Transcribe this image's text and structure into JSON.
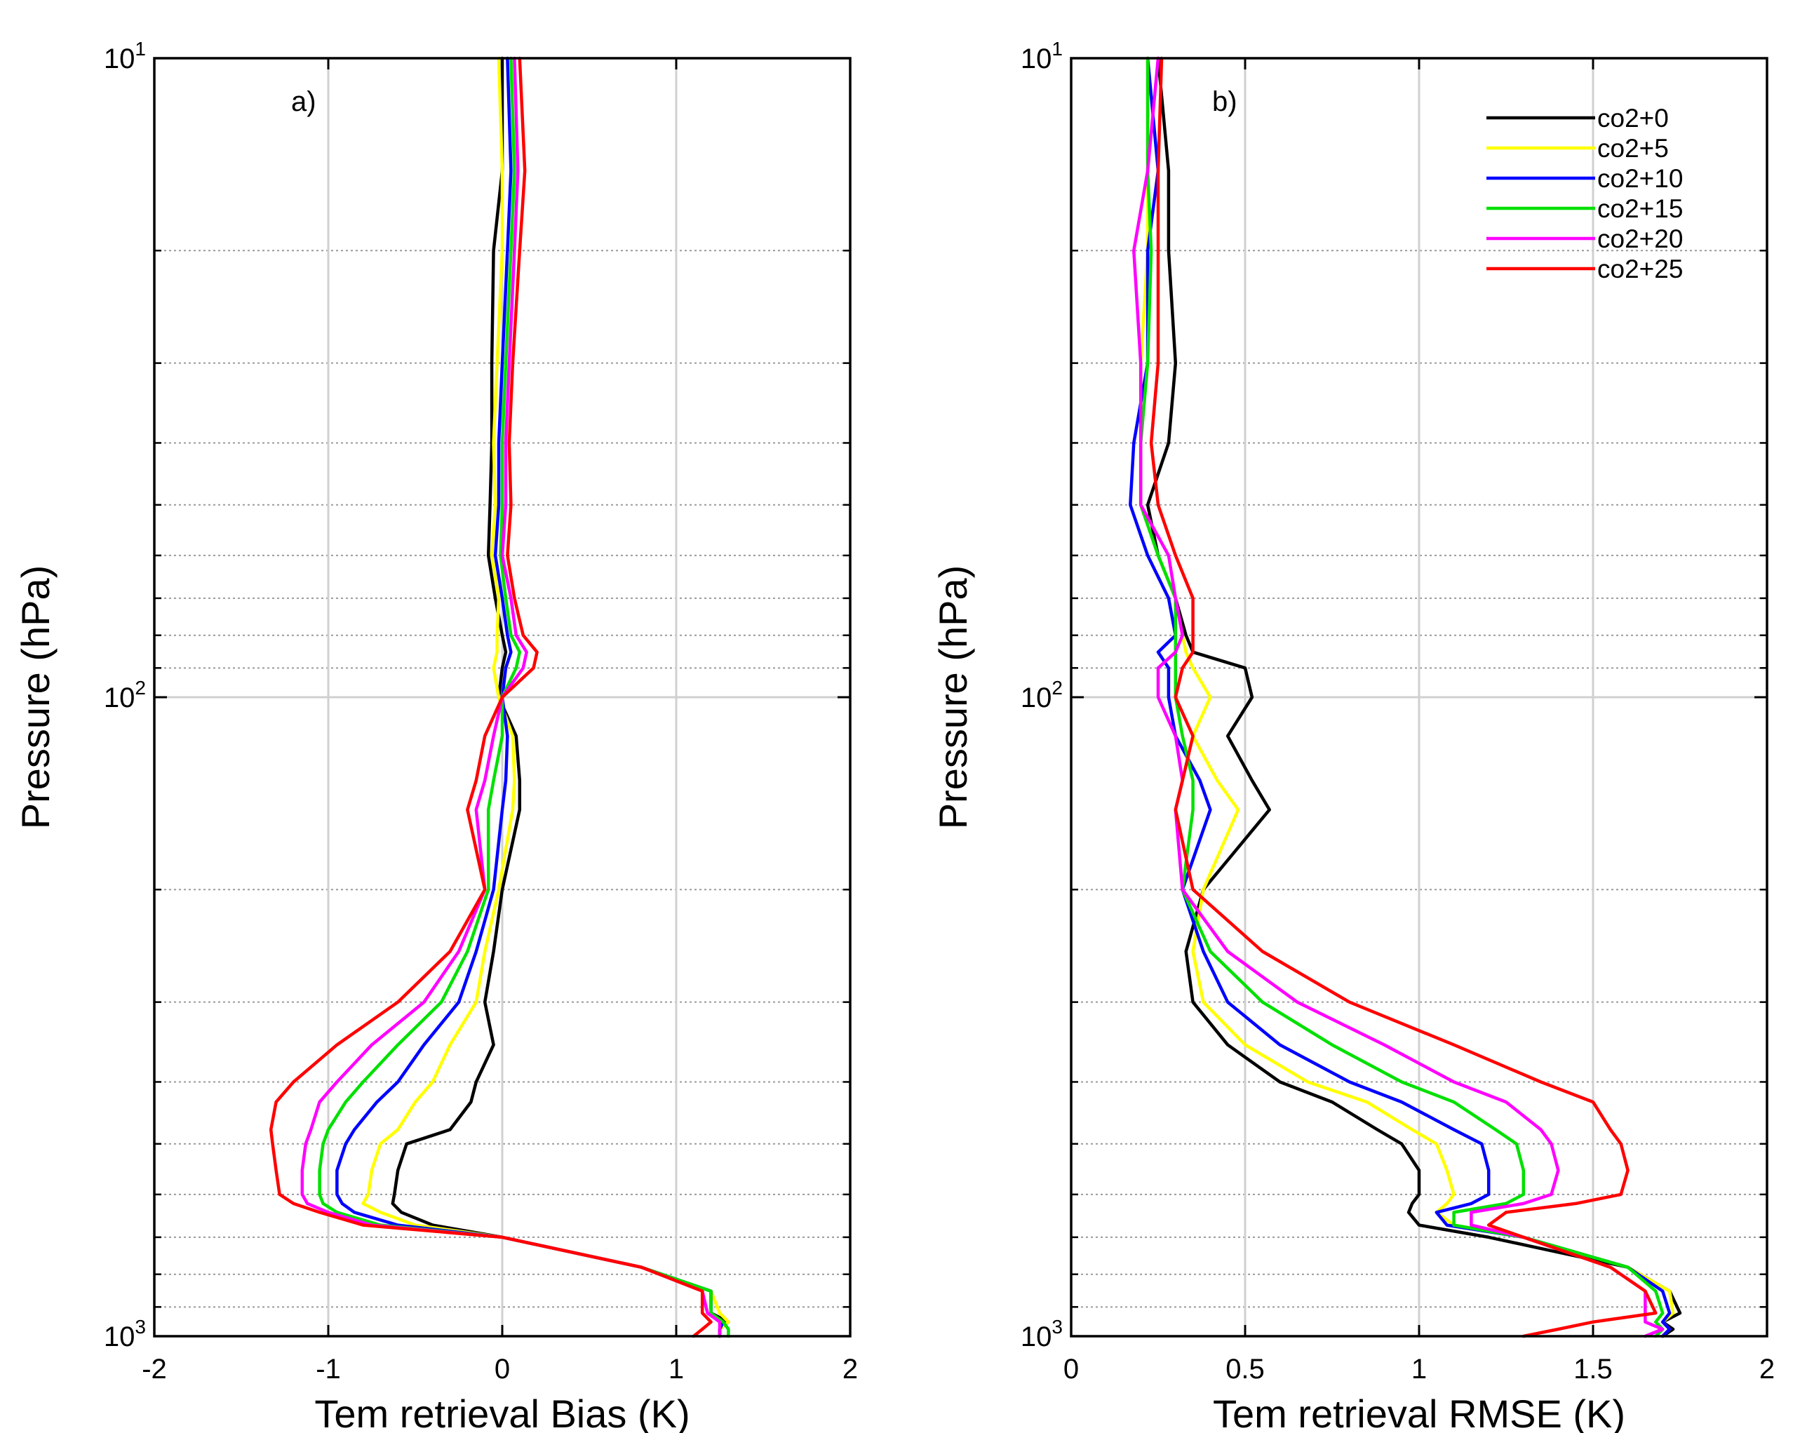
{
  "chart_data": [
    {
      "type": "line",
      "panel_label": "a)",
      "xlabel": "Tem retrieval Bias (K)",
      "ylabel": "Pressure (hPa)",
      "xlim": [
        -2,
        2
      ],
      "ylim": [
        10,
        1000
      ],
      "yscale": "log",
      "y_reversed": true,
      "grid": true,
      "xticks": [
        -2,
        -1,
        0,
        1,
        2
      ],
      "xtick_labels": [
        "-2",
        "-1",
        "0",
        "1",
        "2"
      ],
      "yticks": [
        {
          "value": 10,
          "base": "10",
          "exp": "1"
        },
        {
          "value": 100,
          "base": "10",
          "exp": "2"
        },
        {
          "value": 1000,
          "base": "10",
          "exp": "3"
        }
      ],
      "pressure_levels": [
        10,
        15,
        20,
        30,
        40,
        50,
        60,
        70,
        80,
        85,
        90,
        100,
        115,
        135,
        150,
        200,
        250,
        300,
        350,
        400,
        430,
        475,
        500,
        550,
        600,
        620,
        640,
        670,
        700,
        780,
        850,
        920,
        950,
        975,
        1000
      ],
      "series": [
        {
          "name": "co2+0",
          "color": "#000000",
          "values": [
            0.0,
            0.0,
            -0.05,
            -0.06,
            -0.06,
            -0.07,
            -0.08,
            -0.04,
            0.0,
            0.02,
            0.0,
            -0.02,
            0.08,
            0.1,
            0.1,
            0.0,
            -0.05,
            -0.1,
            -0.05,
            -0.15,
            -0.18,
            -0.3,
            -0.55,
            -0.6,
            -0.62,
            -0.63,
            -0.58,
            -0.4,
            0.0,
            0.8,
            1.2,
            1.2,
            1.3,
            1.25,
            1.25
          ]
        },
        {
          "name": "co2+5",
          "color": "#ffff00",
          "values": [
            -0.02,
            0.0,
            0.0,
            -0.03,
            -0.05,
            -0.04,
            -0.06,
            -0.02,
            -0.03,
            -0.03,
            -0.05,
            -0.02,
            0.06,
            0.07,
            0.06,
            -0.02,
            -0.1,
            -0.15,
            -0.3,
            -0.4,
            -0.5,
            -0.6,
            -0.7,
            -0.75,
            -0.77,
            -0.8,
            -0.7,
            -0.5,
            0.0,
            0.8,
            1.2,
            1.25,
            1.3,
            1.25,
            1.25
          ]
        },
        {
          "name": "co2+10",
          "color": "#0000ff",
          "values": [
            0.03,
            0.05,
            0.03,
            0.0,
            -0.02,
            -0.02,
            -0.04,
            0.0,
            0.03,
            0.05,
            0.02,
            0.0,
            0.03,
            0.02,
            0.0,
            -0.05,
            -0.15,
            -0.25,
            -0.45,
            -0.6,
            -0.72,
            -0.85,
            -0.9,
            -0.95,
            -0.95,
            -0.92,
            -0.85,
            -0.6,
            0.0,
            0.8,
            1.2,
            1.2,
            1.27,
            1.25,
            1.25
          ]
        },
        {
          "name": "co2+15",
          "color": "#00e000",
          "values": [
            0.05,
            0.07,
            0.05,
            0.02,
            0.0,
            0.0,
            -0.01,
            0.02,
            0.05,
            0.1,
            0.08,
            0.0,
            0.0,
            -0.05,
            -0.08,
            -0.08,
            -0.2,
            -0.35,
            -0.6,
            -0.8,
            -0.9,
            -1.0,
            -1.03,
            -1.05,
            -1.05,
            -1.03,
            -0.95,
            -0.7,
            0.0,
            0.8,
            1.2,
            1.2,
            1.27,
            1.3,
            1.3
          ]
        },
        {
          "name": "co2+20",
          "color": "#ff00ff",
          "values": [
            0.07,
            0.09,
            0.07,
            0.04,
            0.02,
            0.02,
            0.0,
            0.05,
            0.08,
            0.14,
            0.12,
            0.0,
            -0.05,
            -0.1,
            -0.15,
            -0.1,
            -0.25,
            -0.45,
            -0.75,
            -0.95,
            -1.05,
            -1.1,
            -1.13,
            -1.15,
            -1.15,
            -1.12,
            -1.0,
            -0.75,
            0.0,
            0.8,
            1.15,
            1.18,
            1.25,
            1.25,
            1.25
          ]
        },
        {
          "name": "co2+25",
          "color": "#ff0000",
          "values": [
            0.1,
            0.13,
            0.1,
            0.06,
            0.04,
            0.05,
            0.03,
            0.07,
            0.12,
            0.2,
            0.18,
            0.0,
            -0.1,
            -0.15,
            -0.2,
            -0.1,
            -0.3,
            -0.6,
            -0.95,
            -1.2,
            -1.3,
            -1.33,
            -1.32,
            -1.3,
            -1.28,
            -1.2,
            -1.05,
            -0.8,
            0.0,
            0.8,
            1.15,
            1.15,
            1.2,
            1.15,
            1.1
          ]
        }
      ]
    },
    {
      "type": "line",
      "panel_label": "b)",
      "xlabel": "Tem retrieval RMSE (K)",
      "ylabel": "Pressure (hPa)",
      "xlim": [
        0,
        2
      ],
      "ylim": [
        10,
        1000
      ],
      "yscale": "log",
      "y_reversed": true,
      "grid": true,
      "legend_position": "top-right",
      "xticks": [
        0,
        0.5,
        1,
        1.5,
        2
      ],
      "xtick_labels": [
        "0",
        "0.5",
        "1",
        "1.5",
        "2"
      ],
      "yticks": [
        {
          "value": 10,
          "base": "10",
          "exp": "1"
        },
        {
          "value": 100,
          "base": "10",
          "exp": "2"
        },
        {
          "value": 1000,
          "base": "10",
          "exp": "3"
        }
      ],
      "pressure_levels": [
        10,
        15,
        20,
        30,
        40,
        50,
        60,
        70,
        80,
        85,
        90,
        100,
        115,
        135,
        150,
        200,
        250,
        300,
        350,
        400,
        430,
        475,
        500,
        550,
        600,
        620,
        640,
        670,
        700,
        780,
        850,
        920,
        950,
        975,
        1000
      ],
      "series": [
        {
          "name": "co2+0",
          "color": "#000000",
          "values": [
            0.25,
            0.28,
            0.28,
            0.3,
            0.28,
            0.22,
            0.25,
            0.3,
            0.33,
            0.35,
            0.5,
            0.52,
            0.45,
            0.52,
            0.57,
            0.38,
            0.33,
            0.35,
            0.45,
            0.6,
            0.75,
            0.88,
            0.95,
            1.0,
            1.0,
            0.98,
            0.97,
            1.0,
            1.2,
            1.6,
            1.72,
            1.75,
            1.7,
            1.73,
            1.7
          ]
        },
        {
          "name": "co2+5",
          "color": "#ffff00",
          "values": [
            0.22,
            0.22,
            0.22,
            0.2,
            0.2,
            0.2,
            0.25,
            0.3,
            0.32,
            0.33,
            0.35,
            0.4,
            0.35,
            0.42,
            0.48,
            0.38,
            0.35,
            0.38,
            0.5,
            0.68,
            0.85,
            0.98,
            1.05,
            1.08,
            1.1,
            1.08,
            1.05,
            1.1,
            1.3,
            1.6,
            1.72,
            1.73,
            1.7,
            1.72,
            1.7
          ]
        },
        {
          "name": "co2+10",
          "color": "#0000ff",
          "values": [
            0.22,
            0.25,
            0.22,
            0.22,
            0.18,
            0.17,
            0.22,
            0.28,
            0.3,
            0.25,
            0.28,
            0.28,
            0.3,
            0.37,
            0.4,
            0.32,
            0.38,
            0.45,
            0.6,
            0.8,
            0.95,
            1.1,
            1.18,
            1.2,
            1.2,
            1.15,
            1.05,
            1.08,
            1.3,
            1.6,
            1.7,
            1.72,
            1.7,
            1.72,
            1.7
          ]
        },
        {
          "name": "co2+15",
          "color": "#00e000",
          "values": [
            0.22,
            0.22,
            0.23,
            0.22,
            0.2,
            0.2,
            0.25,
            0.3,
            0.3,
            0.3,
            0.3,
            0.3,
            0.32,
            0.35,
            0.35,
            0.32,
            0.4,
            0.55,
            0.75,
            0.95,
            1.1,
            1.22,
            1.28,
            1.3,
            1.3,
            1.25,
            1.1,
            1.1,
            1.3,
            1.6,
            1.68,
            1.7,
            1.68,
            1.7,
            1.68
          ]
        },
        {
          "name": "co2+20",
          "color": "#ff00ff",
          "values": [
            0.25,
            0.22,
            0.18,
            0.2,
            0.2,
            0.2,
            0.28,
            0.3,
            0.32,
            0.3,
            0.25,
            0.25,
            0.3,
            0.32,
            0.3,
            0.32,
            0.45,
            0.65,
            0.9,
            1.1,
            1.25,
            1.35,
            1.38,
            1.4,
            1.38,
            1.3,
            1.15,
            1.15,
            1.3,
            1.55,
            1.65,
            1.65,
            1.65,
            1.7,
            1.65
          ]
        },
        {
          "name": "co2+25",
          "color": "#ff0000",
          "values": [
            0.26,
            0.25,
            0.25,
            0.25,
            0.23,
            0.25,
            0.3,
            0.35,
            0.35,
            0.35,
            0.32,
            0.3,
            0.35,
            0.32,
            0.3,
            0.35,
            0.55,
            0.8,
            1.1,
            1.35,
            1.5,
            1.55,
            1.58,
            1.6,
            1.58,
            1.45,
            1.25,
            1.2,
            1.3,
            1.55,
            1.65,
            1.68,
            1.5,
            1.4,
            1.3
          ]
        }
      ]
    }
  ]
}
